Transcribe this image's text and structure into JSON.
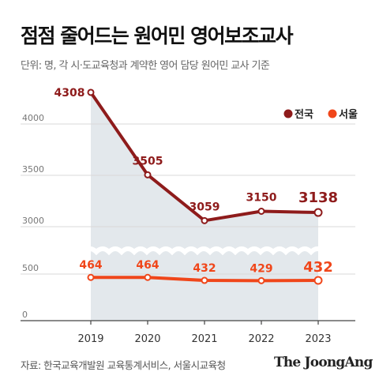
{
  "title": "점점 줄어드는 원어민 영어보조교사",
  "subtitle": "단위: 명, 각 시·도교육청과 계약한 영어 담당 원어민 교사 기준",
  "source": "자료: 한국교육개발원 교육통계서비스, 서울시교육청",
  "brand": "The JoongAng",
  "colors": {
    "national": "#8e1b1b",
    "seoul": "#f0461a",
    "area": "#e3e8ec"
  },
  "chart_data": {
    "type": "line",
    "x": [
      "2019",
      "2020",
      "2021",
      "2022",
      "2023"
    ],
    "series": [
      {
        "name": "전국",
        "values": [
          4308,
          3505,
          3059,
          3150,
          3138
        ],
        "labels": [
          "4308",
          "3505",
          "3059",
          "3150",
          "3138"
        ]
      },
      {
        "name": "서울",
        "values": [
          464,
          464,
          432,
          429,
          432
        ],
        "labels": [
          "464",
          "464",
          "432",
          "429",
          "432"
        ]
      }
    ],
    "y_ticks": [
      "4000",
      "3500",
      "3000",
      "500",
      "0"
    ],
    "y_axis_break": [
      500,
      3000
    ],
    "legend": "top-right",
    "grid": true
  }
}
